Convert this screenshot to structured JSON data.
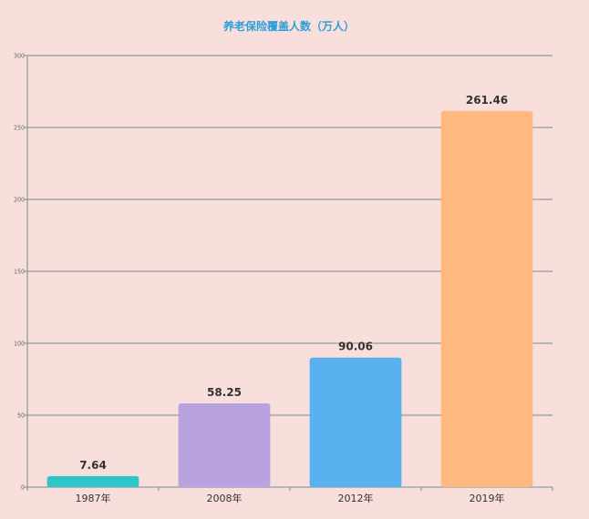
{
  "colors": {
    "background": "#f9dfdc",
    "title": "#2a9fd8",
    "grid": "#6f8f8f",
    "bars": [
      "#2ec6c6",
      "#b8a3de",
      "#5ab1ef",
      "#ffb980"
    ]
  },
  "chart_data": {
    "type": "bar",
    "title": "养老保险覆盖人数（万人）",
    "categories": [
      "1987年",
      "2008年",
      "2012年",
      "2019年"
    ],
    "values": [
      7.64,
      58.25,
      90.06,
      261.46
    ],
    "value_labels": [
      "7.64",
      "58.25",
      "90.06",
      "261.46"
    ],
    "y_ticks": [
      0,
      50,
      100,
      150,
      200,
      250,
      300
    ],
    "ylim": [
      0,
      300
    ],
    "xlabel": "",
    "ylabel": "",
    "grid": true,
    "legend": "none"
  }
}
